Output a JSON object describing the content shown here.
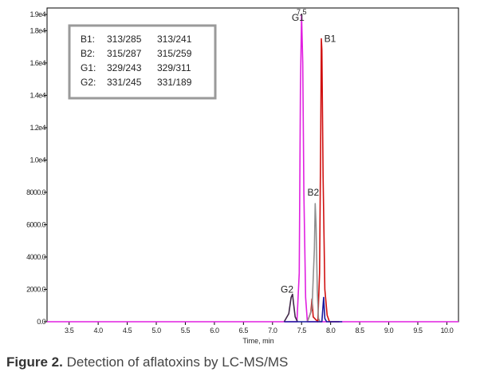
{
  "chart_data": {
    "type": "line",
    "x_axis": {
      "label": "Time, min",
      "ticks": [
        "3.5",
        "4.0",
        "4.5",
        "5.0",
        "5.5",
        "6.0",
        "6.5",
        "7.0",
        "7.5",
        "8.0",
        "8.5",
        "9.0",
        "9.5",
        "10.0"
      ],
      "range": [
        3.12,
        10.2
      ]
    },
    "y_axis": {
      "ticks": [
        {
          "value": 0,
          "label": "0.0"
        },
        {
          "value": 2000,
          "label": "2000.0"
        },
        {
          "value": 4000,
          "label": "4000.0"
        },
        {
          "value": 6000,
          "label": "6000.0"
        },
        {
          "value": 8000,
          "label": "8000.0"
        },
        {
          "value": 10000,
          "label": "1.0e4"
        },
        {
          "value": 12000,
          "label": "1.2e4"
        },
        {
          "value": 14000,
          "label": "1.4e4"
        },
        {
          "value": 16000,
          "label": "1.6e4"
        },
        {
          "value": 18000,
          "label": "1.8e4"
        },
        {
          "value": 19000,
          "label": "1.9e4"
        }
      ],
      "range": [
        0,
        19400
      ]
    },
    "legend_box": {
      "position": "top-left",
      "rows": [
        {
          "name": "B1:",
          "t1": "313/285",
          "t2": "313/241"
        },
        {
          "name": "B2:",
          "t1": "315/287",
          "t2": "315/259"
        },
        {
          "name": "G1:",
          "t1": "329/243",
          "t2": "329/311"
        },
        {
          "name": "G2:",
          "t1": "331/245",
          "t2": "331/189"
        }
      ]
    },
    "series": [
      {
        "label": "G1",
        "color": "#e020e0",
        "points": [
          [
            3.12,
            0
          ],
          [
            7.3,
            0
          ],
          [
            7.42,
            0
          ],
          [
            7.46,
            3000
          ],
          [
            7.48,
            14500
          ],
          [
            7.5,
            19000
          ],
          [
            7.52,
            16000
          ],
          [
            7.54,
            8000
          ],
          [
            7.57,
            1500
          ],
          [
            7.6,
            0
          ],
          [
            10.2,
            0
          ]
        ]
      },
      {
        "label": "B1",
        "color": "#d01010",
        "points": [
          [
            7.6,
            0
          ],
          [
            7.66,
            600
          ],
          [
            7.68,
            1400
          ],
          [
            7.7,
            300
          ],
          [
            7.78,
            0
          ],
          [
            7.81,
            3000
          ],
          [
            7.83,
            12000
          ],
          [
            7.84,
            17500
          ],
          [
            7.85,
            16800
          ],
          [
            7.87,
            9000
          ],
          [
            7.9,
            2000
          ],
          [
            7.94,
            400
          ],
          [
            7.98,
            0
          ],
          [
            8.15,
            0
          ]
        ]
      },
      {
        "label": "B2",
        "color": "#909090",
        "points": [
          [
            7.6,
            0
          ],
          [
            7.68,
            800
          ],
          [
            7.72,
            4500
          ],
          [
            7.735,
            7300
          ],
          [
            7.75,
            6000
          ],
          [
            7.77,
            2000
          ],
          [
            7.79,
            200
          ],
          [
            7.82,
            0
          ]
        ]
      },
      {
        "label": "G2",
        "color": "#402848",
        "points": [
          [
            7.2,
            0
          ],
          [
            7.28,
            500
          ],
          [
            7.32,
            1500
          ],
          [
            7.345,
            1700
          ],
          [
            7.36,
            1200
          ],
          [
            7.39,
            300
          ],
          [
            7.43,
            0
          ]
        ]
      },
      {
        "label": "",
        "color": "#1a1aa0",
        "points": [
          [
            7.2,
            0
          ],
          [
            7.8,
            0
          ],
          [
            7.85,
            0
          ],
          [
            7.88,
            1500
          ],
          [
            7.9,
            200
          ],
          [
            7.93,
            0
          ],
          [
            8.2,
            0
          ]
        ]
      }
    ],
    "peak_labels": [
      {
        "text": "7.5",
        "x": 7.5,
        "y": 19000
      },
      {
        "text": "G1",
        "x": 7.44,
        "y": 18600
      },
      {
        "text": "B1",
        "x": 7.99,
        "y": 17300
      },
      {
        "text": "B2",
        "x": 7.7,
        "y": 7800
      },
      {
        "text": "G2",
        "x": 7.25,
        "y": 1800
      }
    ]
  },
  "caption": {
    "bold": "Figure 2.",
    "text": " Detection of aflatoxins by LC-MS/MS"
  }
}
